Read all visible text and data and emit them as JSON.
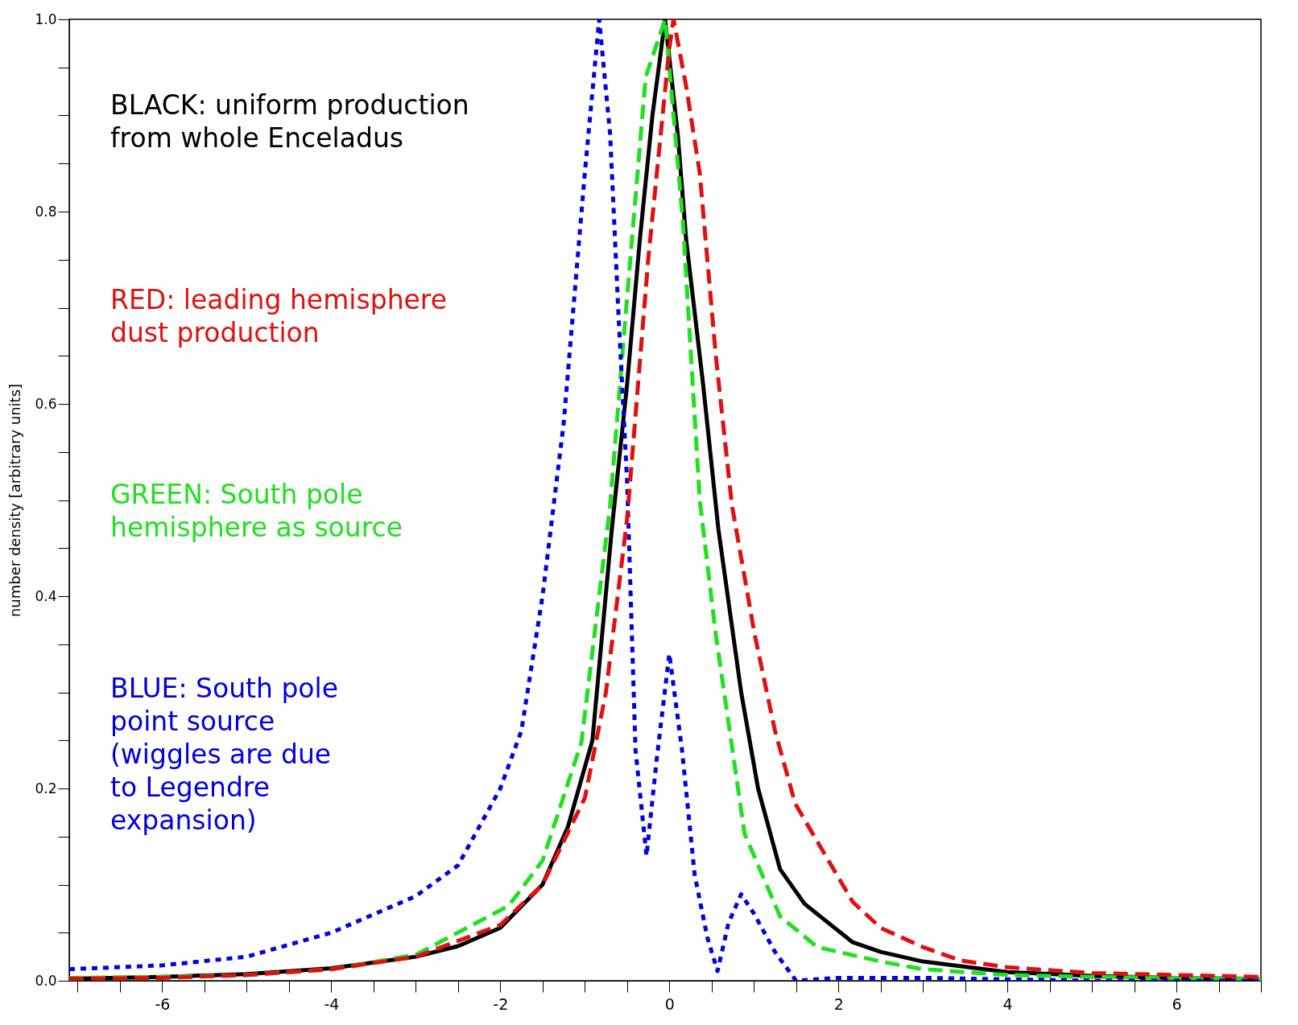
{
  "chart_data": {
    "type": "line",
    "ylabel": "number density [arbitrary units]",
    "xlim": [
      -7.1,
      7.0
    ],
    "ylim": [
      0,
      1
    ],
    "xticks": [
      {
        "value": -7,
        "label": null
      },
      {
        "value": -6.5,
        "label": null
      },
      -6,
      {
        "value": -5.5,
        "label": null
      },
      {
        "value": -5,
        "label": null
      },
      {
        "value": -4.5,
        "label": null
      },
      -4,
      {
        "value": -3.5,
        "label": null
      },
      {
        "value": -3,
        "label": null
      },
      {
        "value": -2.5,
        "label": null
      },
      -2,
      {
        "value": -1.5,
        "label": null
      },
      {
        "value": -1,
        "label": null
      },
      {
        "value": -0.5,
        "label": null
      },
      0,
      {
        "value": 0.5,
        "label": null
      },
      {
        "value": 1,
        "label": null
      },
      {
        "value": 1.5,
        "label": null
      },
      2,
      {
        "value": 2.5,
        "label": null
      },
      {
        "value": 3,
        "label": null
      },
      {
        "value": 3.5,
        "label": null
      },
      4,
      {
        "value": 4.5,
        "label": null
      },
      {
        "value": 5,
        "label": null
      },
      {
        "value": 5.5,
        "label": null
      },
      6,
      {
        "value": 6.5,
        "label": null
      },
      {
        "value": 7,
        "label": null
      }
    ],
    "yticks": [
      {
        "value": 0,
        "label": "0.0"
      },
      {
        "value": 0.05,
        "label": null
      },
      {
        "value": 0.1,
        "label": null
      },
      {
        "value": 0.15,
        "label": null
      },
      {
        "value": 0.2,
        "label": "0.2"
      },
      {
        "value": 0.25,
        "label": null
      },
      {
        "value": 0.3,
        "label": null
      },
      {
        "value": 0.35,
        "label": null
      },
      {
        "value": 0.4,
        "label": "0.4"
      },
      {
        "value": 0.45,
        "label": null
      },
      {
        "value": 0.5,
        "label": null
      },
      {
        "value": 0.55,
        "label": null
      },
      {
        "value": 0.6,
        "label": "0.6"
      },
      {
        "value": 0.65,
        "label": null
      },
      {
        "value": 0.7,
        "label": null
      },
      {
        "value": 0.75,
        "label": null
      },
      {
        "value": 0.8,
        "label": "0.8"
      },
      {
        "value": 0.85,
        "label": null
      },
      {
        "value": 0.9,
        "label": null
      },
      {
        "value": 0.95,
        "label": null
      },
      {
        "value": 1,
        "label": "1.0"
      }
    ],
    "grid": false,
    "series": [
      {
        "color": "#000000",
        "line_style": "solid",
        "x": [
          -7.1,
          -6,
          -5,
          -4,
          -3,
          -2.5,
          -2,
          -1.5,
          -1.2,
          -0.91,
          -0.68,
          -0.5,
          -0.35,
          -0.2,
          -0.05,
          0.1,
          0.2,
          0.4,
          0.58,
          0.85,
          1.05,
          1.31,
          1.6,
          2.17,
          2.5,
          3,
          4,
          5,
          6,
          7
        ],
        "values": [
          0.002,
          0.004,
          0.007,
          0.013,
          0.025,
          0.036,
          0.055,
          0.1,
          0.16,
          0.25,
          0.47,
          0.62,
          0.77,
          0.9,
          1.0,
          0.88,
          0.77,
          0.62,
          0.47,
          0.3,
          0.2,
          0.116,
          0.08,
          0.04,
          0.03,
          0.02,
          0.009,
          0.005,
          0.003,
          0.002
        ]
      },
      {
        "color": "#e01010",
        "line_style": "dashed",
        "x": [
          -7.1,
          -6,
          -5,
          -4,
          -3,
          -2,
          -1.5,
          -1,
          -0.75,
          -0.5,
          -0.25,
          0,
          0.05,
          0.2,
          0.36,
          0.55,
          0.74,
          1.01,
          1.25,
          1.49,
          2.17,
          2.5,
          3,
          3.45,
          4,
          5,
          6,
          7
        ],
        "values": [
          0.002,
          0.003,
          0.006,
          0.012,
          0.025,
          0.058,
          0.1,
          0.19,
          0.3,
          0.48,
          0.75,
          0.97,
          1.0,
          0.93,
          0.84,
          0.65,
          0.495,
          0.36,
          0.26,
          0.184,
          0.082,
          0.055,
          0.035,
          0.021,
          0.014,
          0.008,
          0.006,
          0.004
        ]
      },
      {
        "color": "#20e020",
        "line_style": "dashed",
        "x": [
          -7.1,
          -6,
          -5,
          -4,
          -3,
          -1.9,
          -1.5,
          -1.04,
          -0.7,
          -0.51,
          -0.28,
          -0.05,
          0.16,
          0.36,
          0.55,
          0.89,
          1.31,
          1.75,
          2.5,
          3,
          4,
          5,
          6,
          7
        ],
        "values": [
          0.003,
          0.004,
          0.006,
          0.012,
          0.027,
          0.078,
          0.125,
          0.248,
          0.495,
          0.7,
          0.94,
          1.0,
          0.79,
          0.5,
          0.36,
          0.153,
          0.067,
          0.035,
          0.02,
          0.012,
          0.006,
          0.004,
          0.003,
          0.002
        ]
      },
      {
        "color": "#0000e0",
        "line_style": "dotted",
        "x": [
          -7.1,
          -6,
          -5,
          -4,
          -3,
          -2.5,
          -2,
          -1.75,
          -1.5,
          -1.25,
          -1,
          -0.83,
          -0.7,
          -0.6,
          -0.5,
          -0.4,
          -0.27,
          -0.15,
          0,
          0.15,
          0.3,
          0.45,
          0.57,
          0.7,
          0.85,
          1,
          1.25,
          1.5,
          2,
          3,
          5,
          7
        ],
        "values": [
          0.012,
          0.016,
          0.025,
          0.05,
          0.088,
          0.12,
          0.2,
          0.26,
          0.4,
          0.58,
          0.84,
          1.0,
          0.88,
          0.69,
          0.52,
          0.24,
          0.13,
          0.23,
          0.34,
          0.24,
          0.11,
          0.045,
          0.01,
          0.06,
          0.09,
          0.07,
          0.03,
          0.0,
          0.003,
          0.003,
          0.0,
          0.0
        ]
      }
    ],
    "annotations": [
      "BLACK: uniform production\nfrom whole Enceladus",
      "RED: leading hemisphere\ndust production",
      "GREEN: South pole\nhemisphere as source",
      "BLUE: South pole\npoint source\n(wiggles are due\nto Legendre\nexpansion)"
    ]
  }
}
